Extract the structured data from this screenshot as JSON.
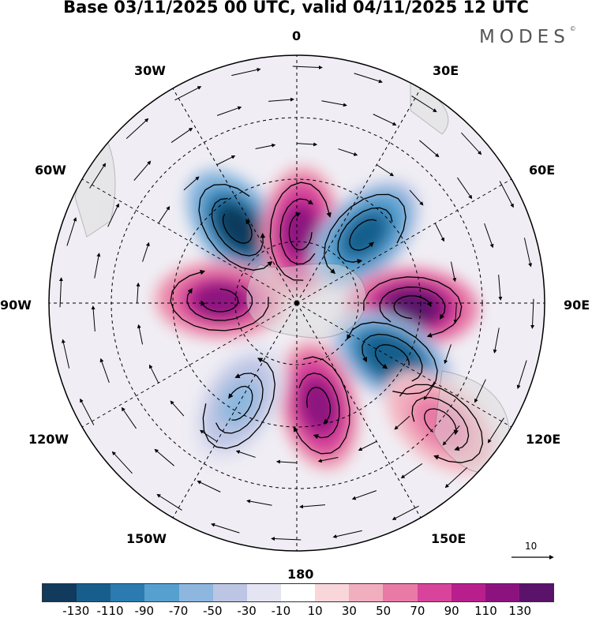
{
  "title": "Base 03/11/2025 00 UTC, valid 04/11/2025 12 UTC",
  "brand": {
    "name": "MODES",
    "mark": "©"
  },
  "lon_labels": {
    "l0": "0",
    "l30e": "30E",
    "l60e": "60E",
    "l90e": "90E",
    "l120e": "120E",
    "l150e": "150E",
    "l180": "180",
    "l150w": "150W",
    "l120w": "120W",
    "l90w": "90W",
    "l60w": "60W",
    "l30w": "30W"
  },
  "vector_reference": {
    "label": "10",
    "icon": "arrow-right-icon"
  },
  "colorbar": {
    "colors": [
      "#113a5c",
      "#185e8c",
      "#2b7bb0",
      "#56a0cf",
      "#8db7de",
      "#bcc5e4",
      "#e4e4f2",
      "#ffffff",
      "#f8d6da",
      "#f1aebe",
      "#e97aa6",
      "#d8449b",
      "#b81f8d",
      "#8c137f",
      "#5a126b"
    ],
    "ticks": [
      "-130",
      "-110",
      "-90",
      "-70",
      "-50",
      "-30",
      "-10",
      "10",
      "30",
      "50",
      "70",
      "90",
      "110",
      "130"
    ]
  },
  "field": {
    "anomalies": [
      {
        "name": "low-south-atlantic",
        "lon_deg": -38,
        "colat_deg": 35,
        "value": -135
      },
      {
        "name": "high-greenwich",
        "lon_deg": 3,
        "colat_deg": 26,
        "value": 115
      },
      {
        "name": "low-indian-west",
        "lon_deg": 45,
        "colat_deg": 35,
        "value": -120
      },
      {
        "name": "high-indian-east",
        "lon_deg": 92,
        "colat_deg": 42,
        "value": 135
      },
      {
        "name": "low-south-australia",
        "lon_deg": 120,
        "colat_deg": 40,
        "value": -130
      },
      {
        "name": "high-ross-sea",
        "lon_deg": 168,
        "colat_deg": 38,
        "value": 115
      },
      {
        "name": "low-pacific",
        "lon_deg": -150,
        "colat_deg": 42,
        "value": -55
      },
      {
        "name": "high-bellingshausen",
        "lon_deg": -88,
        "colat_deg": 28,
        "value": 110
      },
      {
        "name": "high-nz-east",
        "lon_deg": 130,
        "colat_deg": 68,
        "value": 60
      }
    ]
  }
}
